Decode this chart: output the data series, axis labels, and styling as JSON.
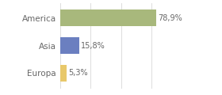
{
  "categories": [
    "Europa",
    "Asia",
    "America"
  ],
  "values": [
    78.9,
    15.8,
    5.3
  ],
  "labels": [
    "78,9%",
    "15,8%",
    "5,3%"
  ],
  "bar_colors": [
    "#a8b87c",
    "#6b7fc0",
    "#e8c86a"
  ],
  "background_color": "#ffffff",
  "xlim": [
    0,
    100
  ],
  "bar_height": 0.6,
  "label_fontsize": 7,
  "tick_fontsize": 7.5,
  "grid_color": "#dddddd",
  "text_color": "#666666"
}
